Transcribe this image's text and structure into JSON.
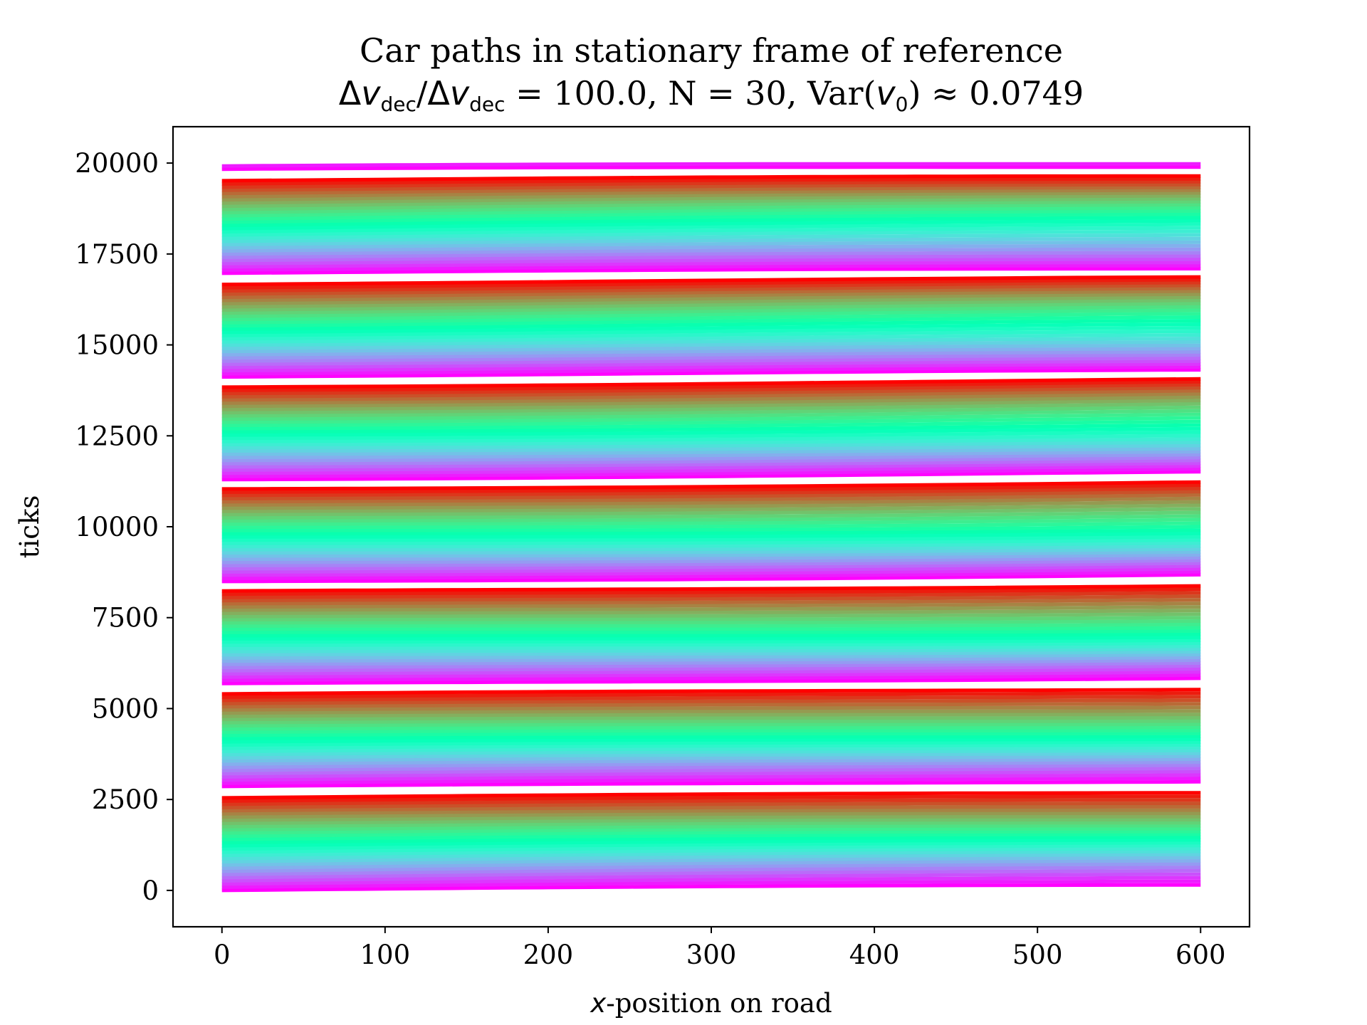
{
  "chart_data": {
    "type": "line",
    "title": "Car paths in stationary frame of reference",
    "subtitle_parts": {
      "delta": "Δ",
      "v": "v",
      "sub": "dec",
      "slash": "/",
      "rest": " = 100.0, N = 30, Var(",
      "v0_v": "v",
      "v0_sub": "0",
      "close": ") ≈ 0.0749"
    },
    "xlabel_italic": "x",
    "xlabel_rest": "-position on road",
    "ylabel": "ticks",
    "xlim": [
      -30,
      630
    ],
    "ylim": [
      -1000,
      21000
    ],
    "xticks": [
      0,
      100,
      200,
      300,
      400,
      500,
      600
    ],
    "yticks": [
      0,
      2500,
      5000,
      7500,
      10000,
      12500,
      15000,
      17500,
      20000
    ],
    "road_length": 600,
    "num_cars": 30,
    "lap_ticks": 2830,
    "lap_count": 7,
    "tick_end": 20000,
    "colormap": "rainbow",
    "colors": {
      "start": "#8000ff",
      "mid": "#80ffb4",
      "end": "#ff0000",
      "axes": "#000000"
    }
  }
}
